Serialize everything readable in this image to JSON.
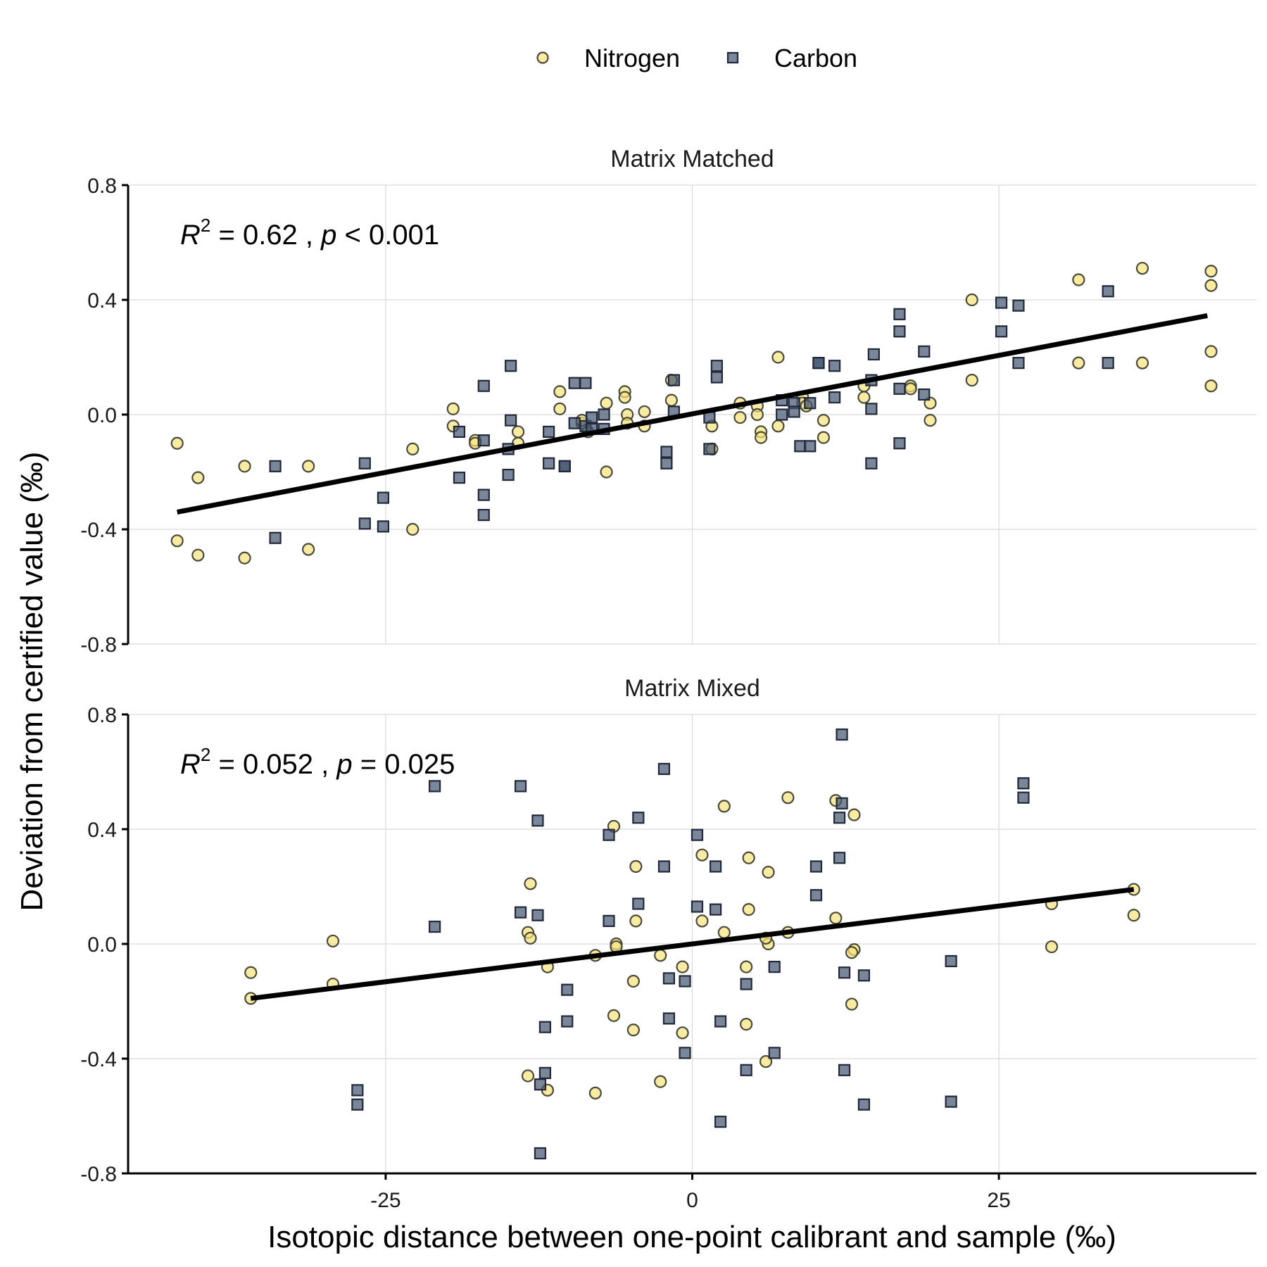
{
  "chart_data": {
    "type": "scatter",
    "xlabel": "Isotopic distance between one-point calibrant and sample (‰)",
    "ylabel": "Deviation from certified value (‰)",
    "xlim": [
      -46,
      46
    ],
    "ylim": [
      -0.8,
      0.8
    ],
    "x_ticks": [
      -25,
      0,
      25
    ],
    "x_tick_labels": [
      "-25",
      "0",
      "25"
    ],
    "y_ticks": [
      -0.8,
      -0.4,
      0.0,
      0.4,
      0.8
    ],
    "y_tick_labels": [
      "-0.8",
      "-0.4",
      "0.0",
      "0.4",
      "0.8"
    ],
    "grid": true,
    "legend": {
      "position": "top",
      "entries": [
        {
          "name": "Nitrogen",
          "shape": "circle",
          "color": "#f6e27a"
        },
        {
          "name": "Carbon",
          "shape": "square",
          "color": "#42526e"
        }
      ]
    },
    "panels": [
      {
        "title": "Matrix Matched",
        "stat_label": {
          "r2": "0.62",
          "p_op": "<",
          "p": "0.001"
        },
        "fit": {
          "x": [
            -42,
            42
          ],
          "y": [
            -0.34,
            0.345
          ]
        },
        "series": [
          {
            "name": "Nitrogen",
            "points": [
              [
                -42,
                -0.1
              ],
              [
                -42,
                -0.44
              ],
              [
                -40.3,
                -0.22
              ],
              [
                -40.3,
                -0.49
              ],
              [
                -36.5,
                -0.18
              ],
              [
                -36.5,
                -0.5
              ],
              [
                -31.3,
                -0.18
              ],
              [
                -31.3,
                -0.47
              ],
              [
                -22.8,
                -0.12
              ],
              [
                -22.8,
                -0.4
              ],
              [
                -19.5,
                0.02
              ],
              [
                -19.5,
                -0.04
              ],
              [
                -17.7,
                -0.09
              ],
              [
                -17.7,
                -0.1
              ],
              [
                -14.2,
                -0.06
              ],
              [
                -14.2,
                -0.1
              ],
              [
                -10.8,
                0.08
              ],
              [
                -10.8,
                0.02
              ],
              [
                -9.0,
                -0.03
              ],
              [
                -9.0,
                -0.02
              ],
              [
                -8.5,
                -0.06
              ],
              [
                -7.0,
                0.04
              ],
              [
                -7.0,
                -0.2
              ],
              [
                -5.5,
                0.08
              ],
              [
                -5.5,
                0.06
              ],
              [
                -5.3,
                0.0
              ],
              [
                -5.3,
                -0.03
              ],
              [
                -3.9,
                0.01
              ],
              [
                -3.9,
                -0.04
              ],
              [
                -1.7,
                0.12
              ],
              [
                -1.7,
                0.05
              ],
              [
                1.6,
                -0.04
              ],
              [
                1.6,
                -0.12
              ],
              [
                3.9,
                0.04
              ],
              [
                3.9,
                -0.01
              ],
              [
                5.3,
                0.03
              ],
              [
                5.3,
                -0.0
              ],
              [
                5.6,
                -0.06
              ],
              [
                5.6,
                -0.08
              ],
              [
                7.0,
                0.2
              ],
              [
                7.0,
                -0.04
              ],
              [
                9.0,
                0.06
              ],
              [
                9.0,
                0.04
              ],
              [
                9.3,
                0.03
              ],
              [
                10.7,
                -0.02
              ],
              [
                10.7,
                -0.08
              ],
              [
                14.0,
                0.1
              ],
              [
                14.0,
                0.06
              ],
              [
                17.8,
                0.1
              ],
              [
                17.8,
                0.09
              ],
              [
                19.4,
                0.04
              ],
              [
                19.4,
                -0.02
              ],
              [
                22.8,
                0.4
              ],
              [
                22.8,
                0.12
              ],
              [
                31.5,
                0.47
              ],
              [
                31.5,
                0.18
              ],
              [
                36.7,
                0.51
              ],
              [
                36.7,
                0.18
              ],
              [
                42.3,
                0.5
              ],
              [
                42.3,
                0.22
              ],
              [
                42.3,
                0.45
              ],
              [
                42.3,
                0.1
              ]
            ]
          },
          {
            "name": "Carbon",
            "points": [
              [
                -34.0,
                -0.18
              ],
              [
                -34.0,
                -0.43
              ],
              [
                -26.7,
                -0.17
              ],
              [
                -26.7,
                -0.38
              ],
              [
                -25.2,
                -0.29
              ],
              [
                -25.2,
                -0.39
              ],
              [
                -19.0,
                -0.06
              ],
              [
                -19.0,
                -0.22
              ],
              [
                -17.0,
                0.1
              ],
              [
                -17.0,
                -0.09
              ],
              [
                -17.0,
                -0.28
              ],
              [
                -17.0,
                -0.35
              ],
              [
                -14.8,
                0.17
              ],
              [
                -14.8,
                -0.02
              ],
              [
                -15.0,
                -0.12
              ],
              [
                -15.0,
                -0.21
              ],
              [
                -11.7,
                -0.06
              ],
              [
                -11.7,
                -0.17
              ],
              [
                -10.4,
                -0.18
              ],
              [
                -10.4,
                -0.18
              ],
              [
                -9.6,
                0.11
              ],
              [
                -9.6,
                -0.03
              ],
              [
                -8.7,
                0.11
              ],
              [
                -8.7,
                -0.04
              ],
              [
                -8.2,
                -0.01
              ],
              [
                -8.2,
                -0.05
              ],
              [
                -7.2,
                0.0
              ],
              [
                -7.2,
                -0.05
              ],
              [
                -2.1,
                -0.13
              ],
              [
                -2.1,
                -0.17
              ],
              [
                -1.5,
                0.12
              ],
              [
                -1.5,
                0.01
              ],
              [
                1.4,
                -0.01
              ],
              [
                1.4,
                -0.12
              ],
              [
                2.0,
                0.17
              ],
              [
                2.0,
                0.13
              ],
              [
                7.3,
                0.05
              ],
              [
                7.3,
                0.0
              ],
              [
                8.3,
                0.04
              ],
              [
                8.3,
                0.01
              ],
              [
                8.8,
                -0.11
              ],
              [
                9.6,
                0.04
              ],
              [
                9.6,
                -0.11
              ],
              [
                10.3,
                0.18
              ],
              [
                10.3,
                0.18
              ],
              [
                11.6,
                0.17
              ],
              [
                11.6,
                0.06
              ],
              [
                14.6,
                0.12
              ],
              [
                14.6,
                0.02
              ],
              [
                14.8,
                0.21
              ],
              [
                14.6,
                -0.17
              ],
              [
                16.9,
                0.35
              ],
              [
                16.9,
                0.29
              ],
              [
                16.9,
                0.09
              ],
              [
                16.9,
                -0.1
              ],
              [
                18.9,
                0.22
              ],
              [
                18.9,
                0.07
              ],
              [
                25.2,
                0.39
              ],
              [
                25.2,
                0.29
              ],
              [
                26.6,
                0.38
              ],
              [
                26.6,
                0.18
              ],
              [
                33.9,
                0.43
              ],
              [
                33.9,
                0.18
              ]
            ]
          }
        ]
      },
      {
        "title": "Matrix Mixed",
        "stat_label": {
          "r2": "0.052",
          "p_op": "=",
          "p": "0.025"
        },
        "fit": {
          "x": [
            -36,
            36
          ],
          "y": [
            -0.19,
            0.19
          ]
        },
        "series": [
          {
            "name": "Nitrogen",
            "points": [
              [
                -36,
                -0.1
              ],
              [
                -36,
                -0.19
              ],
              [
                -29.3,
                0.01
              ],
              [
                -29.3,
                -0.14
              ],
              [
                -13.2,
                0.21
              ],
              [
                -13.4,
                0.04
              ],
              [
                -13.2,
                0.02
              ],
              [
                -13.4,
                -0.46
              ],
              [
                -11.8,
                -0.08
              ],
              [
                -11.8,
                -0.51
              ],
              [
                -7.9,
                -0.04
              ],
              [
                -7.9,
                -0.52
              ],
              [
                -6.4,
                0.41
              ],
              [
                -6.4,
                -0.25
              ],
              [
                -6.2,
                0.0
              ],
              [
                -6.2,
                -0.01
              ],
              [
                -4.6,
                0.27
              ],
              [
                -4.6,
                0.08
              ],
              [
                -4.8,
                -0.13
              ],
              [
                -4.8,
                -0.3
              ],
              [
                -2.6,
                -0.04
              ],
              [
                -2.6,
                -0.48
              ],
              [
                -0.8,
                -0.08
              ],
              [
                -0.8,
                -0.31
              ],
              [
                0.8,
                0.31
              ],
              [
                0.8,
                0.08
              ],
              [
                2.6,
                0.48
              ],
              [
                2.6,
                0.04
              ],
              [
                4.6,
                0.3
              ],
              [
                4.6,
                0.12
              ],
              [
                4.4,
                -0.08
              ],
              [
                4.4,
                -0.28
              ],
              [
                6.2,
                0.25
              ],
              [
                6.2,
                0.0
              ],
              [
                6.0,
                0.02
              ],
              [
                6.0,
                -0.41
              ],
              [
                7.8,
                0.51
              ],
              [
                7.8,
                0.04
              ],
              [
                11.7,
                0.5
              ],
              [
                11.7,
                0.09
              ],
              [
                13.2,
                0.45
              ],
              [
                13.2,
                -0.02
              ],
              [
                13.0,
                -0.03
              ],
              [
                13.0,
                -0.21
              ],
              [
                29.3,
                0.14
              ],
              [
                29.3,
                -0.01
              ],
              [
                36.0,
                0.19
              ],
              [
                36.0,
                0.1
              ]
            ]
          },
          {
            "name": "Carbon",
            "points": [
              [
                -27.3,
                -0.51
              ],
              [
                -27.3,
                -0.56
              ],
              [
                -21.0,
                0.55
              ],
              [
                -21.0,
                0.06
              ],
              [
                -14.0,
                0.55
              ],
              [
                -14.0,
                0.11
              ],
              [
                -12.6,
                0.43
              ],
              [
                -12.6,
                0.1
              ],
              [
                -12.4,
                -0.49
              ],
              [
                -12.4,
                -0.73
              ],
              [
                -12.0,
                -0.29
              ],
              [
                -12.0,
                -0.45
              ],
              [
                -10.2,
                -0.16
              ],
              [
                -10.2,
                -0.27
              ],
              [
                -6.8,
                0.38
              ],
              [
                -6.8,
                0.08
              ],
              [
                -4.4,
                0.44
              ],
              [
                -4.4,
                0.14
              ],
              [
                -2.3,
                0.61
              ],
              [
                -2.3,
                0.27
              ],
              [
                -1.9,
                -0.12
              ],
              [
                -1.9,
                -0.26
              ],
              [
                -0.6,
                -0.13
              ],
              [
                -0.6,
                -0.38
              ],
              [
                0.4,
                0.38
              ],
              [
                0.4,
                0.13
              ],
              [
                1.9,
                0.27
              ],
              [
                1.9,
                0.12
              ],
              [
                2.3,
                -0.27
              ],
              [
                2.3,
                -0.62
              ],
              [
                4.4,
                -0.14
              ],
              [
                4.4,
                -0.44
              ],
              [
                6.7,
                -0.08
              ],
              [
                6.7,
                -0.38
              ],
              [
                10.1,
                0.27
              ],
              [
                10.1,
                0.17
              ],
              [
                12.2,
                0.73
              ],
              [
                12.2,
                0.49
              ],
              [
                12.0,
                0.44
              ],
              [
                12.0,
                0.3
              ],
              [
                12.4,
                -0.1
              ],
              [
                12.4,
                -0.44
              ],
              [
                14.0,
                -0.11
              ],
              [
                14.0,
                -0.56
              ],
              [
                21.1,
                -0.06
              ],
              [
                21.1,
                -0.55
              ],
              [
                27.0,
                0.56
              ],
              [
                27.0,
                0.51
              ]
            ]
          }
        ]
      }
    ]
  }
}
